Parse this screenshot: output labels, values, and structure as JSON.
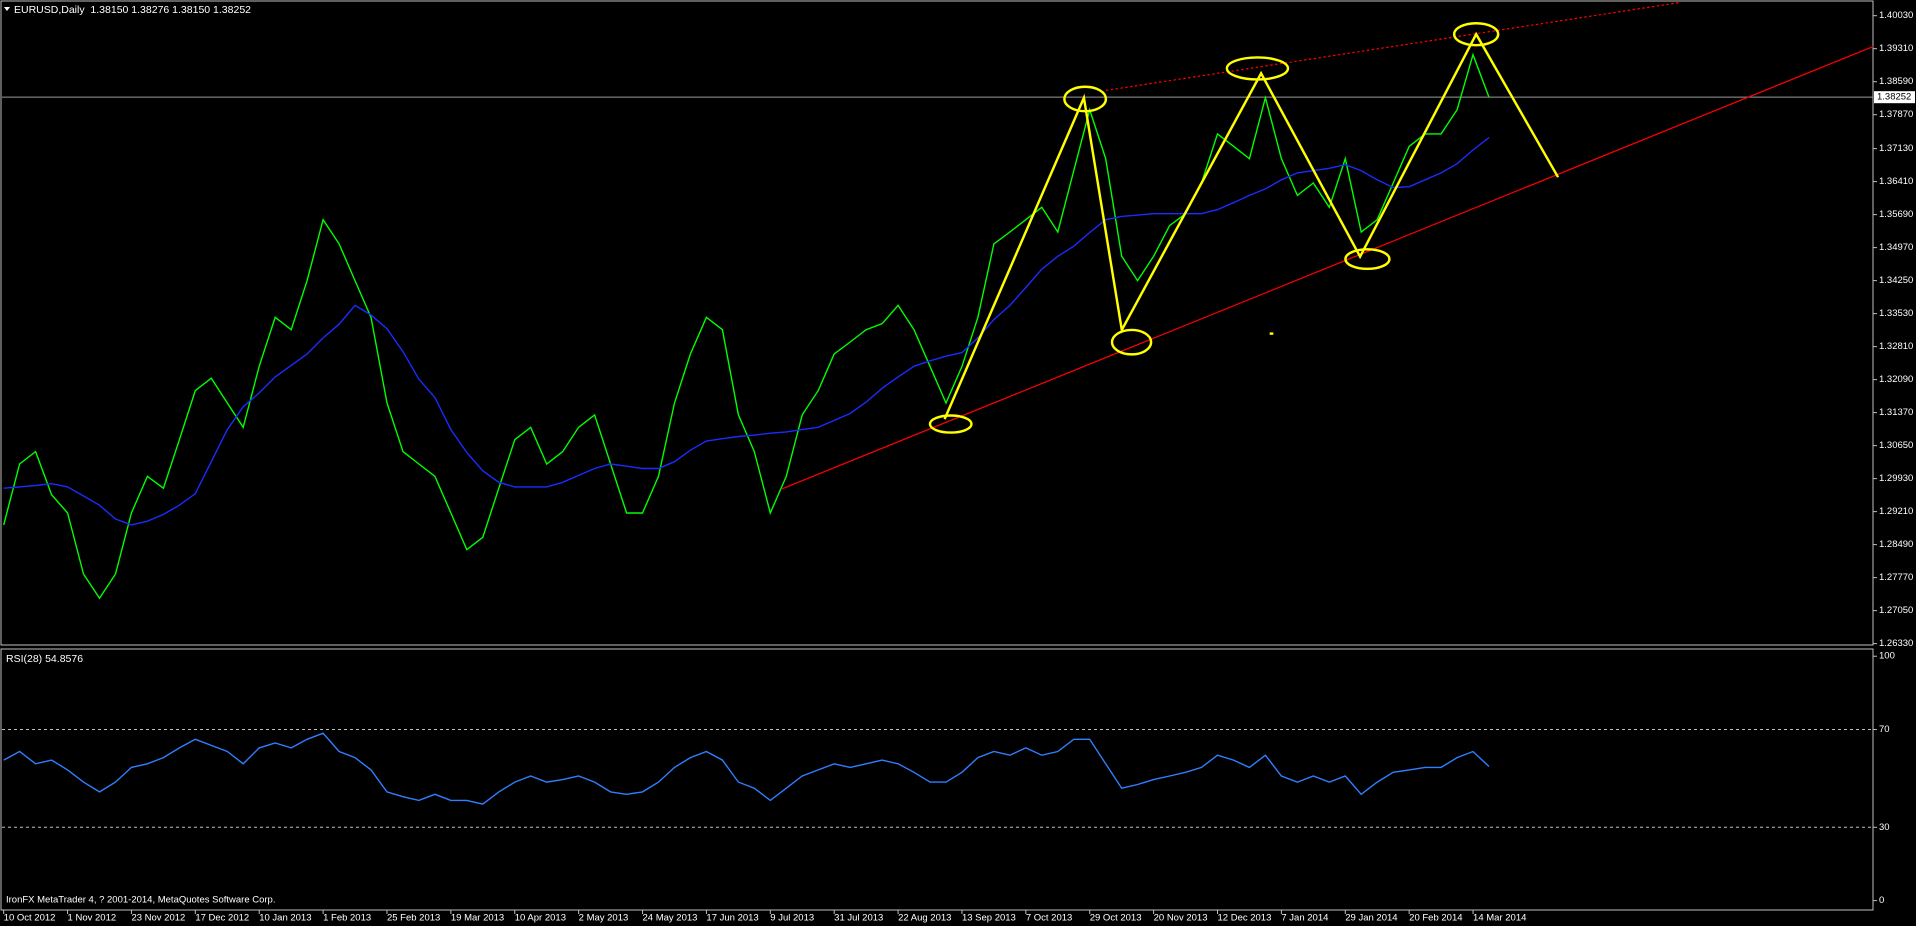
{
  "chart_data": [
    {
      "type": "line",
      "title": "EURUSD,Daily  1.38150 1.38276 1.38150 1.38252",
      "categories": [
        "10 Oct 2012",
        null,
        null,
        null,
        "1 Nov 2012",
        null,
        null,
        null,
        "23 Nov 2012",
        null,
        null,
        null,
        "17 Dec 2012",
        null,
        null,
        null,
        "10 Jan 2013",
        null,
        null,
        null,
        "1 Feb 2013",
        null,
        null,
        null,
        "25 Feb 2013",
        null,
        null,
        null,
        "19 Mar 2013",
        null,
        null,
        null,
        "10 Apr 2013",
        null,
        null,
        null,
        "2 May 2013",
        null,
        null,
        null,
        "24 May 2013",
        null,
        null,
        null,
        "17 Jun 2013",
        null,
        null,
        null,
        "9 Jul 2013",
        null,
        null,
        null,
        "31 Jul 2013",
        null,
        null,
        null,
        "22 Aug 2013",
        null,
        null,
        null,
        "13 Sep 2013",
        null,
        null,
        null,
        "7 Oct 2013",
        null,
        null,
        null,
        "29 Oct 2013",
        null,
        null,
        null,
        "20 Nov 2013",
        null,
        null,
        null,
        "12 Dec 2013",
        null,
        null,
        null,
        "7 Jan 2014",
        null,
        null,
        null,
        "29 Jan 2014",
        null,
        null,
        null,
        "20 Feb 2014",
        null,
        null,
        null,
        "14 Mar 2014",
        null
      ],
      "series": [
        {
          "color": "#00ff00",
          "values": [
            1.2892,
            1.3025,
            1.3052,
            1.2958,
            1.2918,
            1.2785,
            1.2732,
            1.2785,
            1.2918,
            1.2998,
            1.2972,
            1.3078,
            1.3185,
            1.3212,
            1.3158,
            1.3105,
            1.3238,
            1.3345,
            1.3318,
            1.3425,
            1.3558,
            1.3505,
            1.3425,
            1.3345,
            1.3158,
            1.3052,
            1.3025,
            1.2998,
            1.2918,
            1.2838,
            1.2865,
            1.2972,
            1.3078,
            1.3105,
            1.3025,
            1.3052,
            1.3105,
            1.3132,
            1.3025,
            1.2918,
            1.2918,
            1.2998,
            1.3158,
            1.3265,
            1.3345,
            1.3318,
            1.3132,
            1.3052,
            1.2918,
            1.2998,
            1.3132,
            1.3185,
            1.3265,
            1.3291,
            1.3318,
            1.3331,
            1.3371,
            1.3318,
            1.3238,
            1.3158,
            1.3238,
            1.3345,
            1.3505,
            1.3531,
            1.3558,
            1.3585,
            1.3531,
            1.3665,
            1.3798,
            1.3691,
            1.3478,
            1.3425,
            1.3478,
            1.3545,
            1.3571,
            1.3638,
            1.3745,
            1.3718,
            1.3691,
            1.3824,
            1.3691,
            1.3611,
            1.3638,
            1.3585,
            1.3691,
            1.3531,
            1.3558,
            1.3638,
            1.3718,
            1.3745,
            1.3745,
            1.3798,
            1.3918,
            1.3825
          ]
        },
        {
          "color": "#1a2cff",
          "values": [
            1.2972,
            1.2975,
            1.2978,
            1.2982,
            1.2975,
            1.2955,
            1.2935,
            1.2905,
            1.2892,
            1.29,
            1.2915,
            1.2935,
            1.296,
            1.303,
            1.31,
            1.315,
            1.318,
            1.3215,
            1.324,
            1.3265,
            1.33,
            1.333,
            1.3371,
            1.335,
            1.332,
            1.327,
            1.321,
            1.317,
            1.31,
            1.305,
            1.301,
            1.2985,
            1.2975,
            1.2975,
            1.2975,
            1.2985,
            1.3,
            1.3015,
            1.3025,
            1.302,
            1.3015,
            1.3015,
            1.303,
            1.3055,
            1.3075,
            1.308,
            1.3085,
            1.3088,
            1.3092,
            1.3095,
            1.31,
            1.3105,
            1.312,
            1.3135,
            1.316,
            1.319,
            1.3215,
            1.3238,
            1.325,
            1.326,
            1.3268,
            1.33,
            1.334,
            1.3371,
            1.341,
            1.345,
            1.3478,
            1.35,
            1.353,
            1.3558,
            1.3565,
            1.3568,
            1.3571,
            1.3571,
            1.3571,
            1.3571,
            1.358,
            1.3595,
            1.3611,
            1.3625,
            1.3645,
            1.366,
            1.3665,
            1.367,
            1.3678,
            1.3665,
            1.3645,
            1.3628,
            1.363,
            1.3645,
            1.366,
            1.368,
            1.371,
            1.3737
          ]
        }
      ],
      "current_price": 1.38252,
      "ylim": [
        1.263,
        1.4032
      ],
      "yticks": [
        {
          "value": 1.4003,
          "label": "1.40030"
        },
        {
          "value": 1.3931,
          "label": "1.39310"
        },
        {
          "value": 1.3859,
          "label": "1.38590"
        },
        {
          "value": 1.3787,
          "label": "1.37870"
        },
        {
          "value": 1.3713,
          "label": "1.37130"
        },
        {
          "value": 1.3641,
          "label": "1.36410"
        },
        {
          "value": 1.3569,
          "label": "1.35690"
        },
        {
          "value": 1.3497,
          "label": "1.34970"
        },
        {
          "value": 1.3425,
          "label": "1.34250"
        },
        {
          "value": 1.3353,
          "label": "1.33530"
        },
        {
          "value": 1.3281,
          "label": "1.32810"
        },
        {
          "value": 1.3209,
          "label": "1.32090"
        },
        {
          "value": 1.3137,
          "label": "1.31370"
        },
        {
          "value": 1.3065,
          "label": "1.30650"
        },
        {
          "value": 1.2993,
          "label": "1.29930"
        },
        {
          "value": 1.2921,
          "label": "1.29210"
        },
        {
          "value": 1.2849,
          "label": "1.28490"
        },
        {
          "value": 1.2777,
          "label": "1.27770"
        },
        {
          "value": 1.2705,
          "label": "1.27050"
        },
        {
          "value": 1.2633,
          "label": "1.26330"
        }
      ]
    },
    {
      "type": "line",
      "title": "RSI(28) 54.8576",
      "color": "#2f7fff",
      "values": [
        57.5,
        61,
        56,
        57.5,
        53.5,
        48.5,
        44.5,
        48.5,
        54.5,
        56,
        58.5,
        62.5,
        66,
        63.5,
        61,
        56,
        62.5,
        64.5,
        62.5,
        66,
        68.5,
        61,
        58.5,
        53.5,
        44.5,
        42.5,
        41,
        43.5,
        41,
        41,
        39.5,
        44.5,
        48.5,
        51,
        48.5,
        49.5,
        51,
        48.5,
        44.5,
        43.5,
        44.5,
        48.5,
        54.5,
        58.5,
        61,
        57.5,
        48.5,
        46,
        41,
        46,
        51,
        53.5,
        56,
        54.5,
        56,
        57.5,
        56,
        52.5,
        48.5,
        48.5,
        52.5,
        58.5,
        61,
        59.5,
        62.5,
        59.5,
        61,
        66,
        66,
        56,
        46,
        47.5,
        49.5,
        51,
        52.5,
        54.5,
        59.5,
        57.5,
        54.5,
        59.5,
        51,
        48.5,
        51,
        48.5,
        51,
        43.5,
        48.5,
        52.5,
        53.5,
        54.5,
        54.5,
        58.5,
        61,
        54.86
      ],
      "ylim": [
        0,
        100
      ],
      "yticks": [
        0,
        30,
        70,
        100
      ],
      "levels": [
        30,
        70
      ]
    }
  ],
  "footer": "IronFX MetaTrader 4, ? 2001-2014, MetaQuotes Software Corp."
}
